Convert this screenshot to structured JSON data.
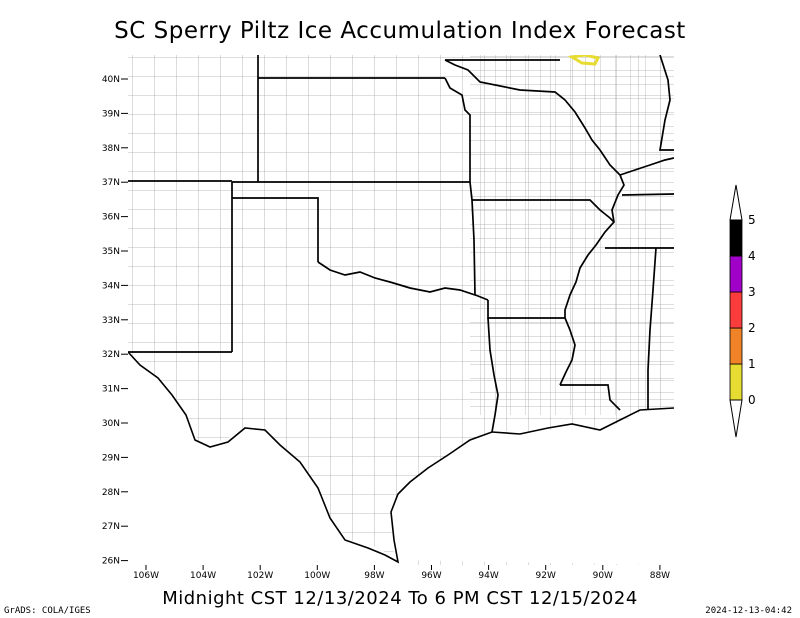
{
  "title": "SC Sperry Piltz Ice Accumulation Index Forecast",
  "subtitle": "Midnight CST 12/13/2024 To 6 PM CST 12/15/2024",
  "credit": "GrADS: COLA/IGES",
  "timestamp": "2024-12-13-04:42",
  "lat_labels": [
    "40N",
    "39N",
    "38N",
    "37N",
    "36N",
    "35N",
    "34N",
    "33N",
    "32N",
    "31N",
    "30N",
    "29N",
    "28N",
    "27N",
    "26N"
  ],
  "lon_labels": [
    "106W",
    "104W",
    "102W",
    "100W",
    "98W",
    "96W",
    "94W",
    "92W",
    "90W",
    "88W"
  ],
  "colorbar": {
    "labels": [
      "0",
      "1",
      "2",
      "3",
      "4",
      "5"
    ],
    "colors": [
      "#e6dc32",
      "#f08228",
      "#fa3c3c",
      "#a000c8",
      "#000000"
    ]
  },
  "colors": {
    "counties": "#a8a8a8",
    "states": "#000000",
    "ice_highlight": "#e6dc32"
  }
}
